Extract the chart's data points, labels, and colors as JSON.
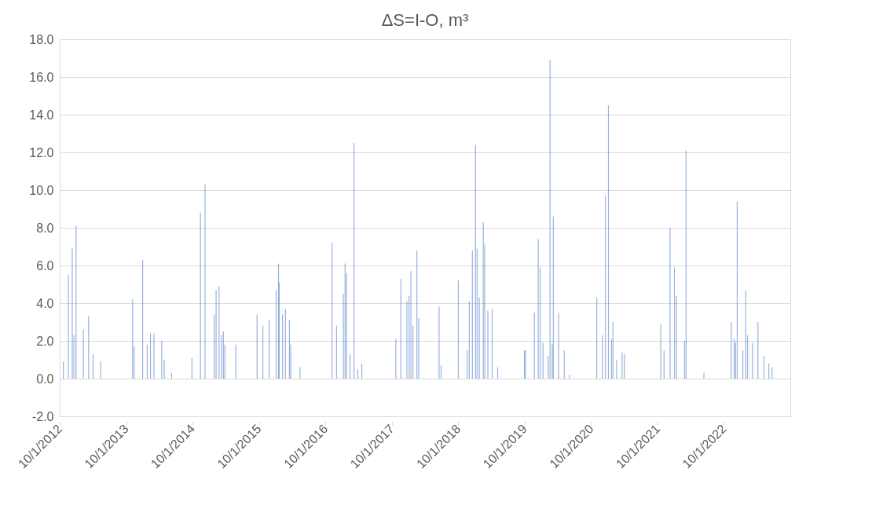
{
  "chart_data": {
    "type": "bar",
    "title": "ΔS=I-O, m³",
    "x": [
      "2012-10-21",
      "2012-11-18",
      "2012-12-09",
      "2012-12-18",
      "2012-12-30",
      "2013-02-08",
      "2013-03-09",
      "2013-04-02",
      "2013-05-14",
      "2013-11-06",
      "2013-11-14",
      "2013-12-31",
      "2014-01-25",
      "2014-02-12",
      "2014-03-03",
      "2014-04-15",
      "2014-04-29",
      "2014-06-08",
      "2014-09-28",
      "2014-11-14",
      "2014-12-09",
      "2015-01-29",
      "2015-02-08",
      "2015-02-24",
      "2015-03-09",
      "2015-03-20",
      "2015-03-28",
      "2015-05-27",
      "2015-09-21",
      "2015-10-23",
      "2015-11-27",
      "2016-01-04",
      "2016-01-17",
      "2016-01-21",
      "2016-02-08",
      "2016-02-24",
      "2016-03-17",
      "2016-03-24",
      "2016-05-14",
      "2016-11-06",
      "2016-12-01",
      "2017-01-08",
      "2017-01-17",
      "2017-01-25",
      "2017-02-13",
      "2017-03-07",
      "2017-03-28",
      "2017-04-19",
      "2017-10-23",
      "2017-11-20",
      "2017-12-23",
      "2018-01-04",
      "2018-01-14",
      "2018-01-25",
      "2018-02-16",
      "2018-02-26",
      "2018-06-18",
      "2018-06-29",
      "2018-10-02",
      "2018-11-20",
      "2018-12-01",
      "2018-12-18",
      "2019-01-04",
      "2019-01-13",
      "2019-01-25",
      "2019-02-16",
      "2019-02-24",
      "2019-03-13",
      "2019-04-06",
      "2019-05-06",
      "2019-09-30",
      "2019-10-06",
      "2019-11-24",
      "2019-12-15",
      "2019-12-26",
      "2020-01-10",
      "2020-02-08",
      "2020-02-18",
      "2020-03-01",
      "2020-03-07",
      "2020-04-05",
      "2020-05-06",
      "2020-06-03",
      "2020-11-01",
      "2020-12-01",
      "2020-12-18",
      "2021-01-04",
      "2021-01-21",
      "2021-01-29",
      "2021-02-18",
      "2021-03-20",
      "2021-04-02",
      "2021-10-19",
      "2021-11-06",
      "2021-12-09",
      "2022-01-02",
      "2022-01-13",
      "2022-02-27",
      "2022-03-07",
      "2022-06-13",
      "2022-11-10",
      "2022-11-27",
      "2022-12-04",
      "2022-12-13",
      "2023-01-13",
      "2023-01-29",
      "2023-02-08",
      "2023-03-07",
      "2023-04-06",
      "2023-05-09",
      "2023-06-05",
      "2023-06-22"
    ],
    "series": [
      {
        "color": "#4472c4",
        "values": [
          0.9,
          5.5,
          6.9,
          2.3,
          8.1,
          2.6,
          3.3,
          1.3,
          0.9,
          4.2,
          1.7,
          6.3,
          1.8,
          2.4,
          2.4,
          2.0,
          1.0,
          0.3,
          1.1,
          8.8,
          10.3,
          3.4,
          4.7,
          4.9,
          2.3,
          2.5,
          1.8,
          1.8,
          3.4,
          2.8,
          3.1,
          4.7,
          6.1,
          5.1,
          3.4,
          3.7,
          3.1,
          1.8,
          0.6,
          7.2,
          2.8,
          4.5,
          6.1,
          5.6,
          1.3,
          12.5,
          0.5,
          0.8,
          2.1,
          5.3,
          4.1,
          4.4,
          5.7,
          2.8,
          6.8,
          3.2,
          3.8,
          0.7,
          5.2,
          1.5,
          4.1,
          6.8,
          12.4,
          6.9,
          4.3,
          8.3,
          7.1,
          3.6,
          3.7,
          0.6,
          1.5,
          1.5,
          3.5,
          7.4,
          5.9,
          1.9,
          1.2,
          16.9,
          1.8,
          8.6,
          3.5,
          1.5,
          0.2,
          4.3,
          2.3,
          9.7,
          14.5,
          2.1,
          3.0,
          1.0,
          1.4,
          1.3,
          2.9,
          1.5,
          8.0,
          5.9,
          4.4,
          2.0,
          12.1,
          0.3,
          3.0,
          2.1,
          1.9,
          9.4,
          1.5,
          4.7,
          2.3,
          1.9,
          3.0,
          1.2,
          0.8,
          0.6
        ]
      }
    ],
    "xlim": [
      "2012-10-01",
      "2023-10-01"
    ],
    "xticks": [
      {
        "value": "2012-10-01",
        "label": "10/1/2012"
      },
      {
        "value": "2013-10-01",
        "label": "10/1/2013"
      },
      {
        "value": "2014-10-01",
        "label": "10/1/2014"
      },
      {
        "value": "2015-10-01",
        "label": "10/1/2015"
      },
      {
        "value": "2016-10-01",
        "label": "10/1/2016"
      },
      {
        "value": "2017-10-01",
        "label": "10/1/2017"
      },
      {
        "value": "2018-10-01",
        "label": "10/1/2018"
      },
      {
        "value": "2019-10-01",
        "label": "10/1/2019"
      },
      {
        "value": "2020-10-01",
        "label": "10/1/2020"
      },
      {
        "value": "2021-10-01",
        "label": "10/1/2021"
      },
      {
        "value": "2022-10-01",
        "label": "10/1/2022"
      }
    ],
    "ylim": [
      -2,
      18
    ],
    "yticks": [
      {
        "value": -2,
        "label": "-2.0"
      },
      {
        "value": 0,
        "label": "0.0"
      },
      {
        "value": 2,
        "label": "2.0"
      },
      {
        "value": 4,
        "label": "4.0"
      },
      {
        "value": 6,
        "label": "6.0"
      },
      {
        "value": 8,
        "label": "8.0"
      },
      {
        "value": 10,
        "label": "10.0"
      },
      {
        "value": 12,
        "label": "12.0"
      },
      {
        "value": 14,
        "label": "14.0"
      },
      {
        "value": 16,
        "label": "16.0"
      },
      {
        "value": 18,
        "label": "18.0"
      }
    ],
    "grid": "y"
  }
}
